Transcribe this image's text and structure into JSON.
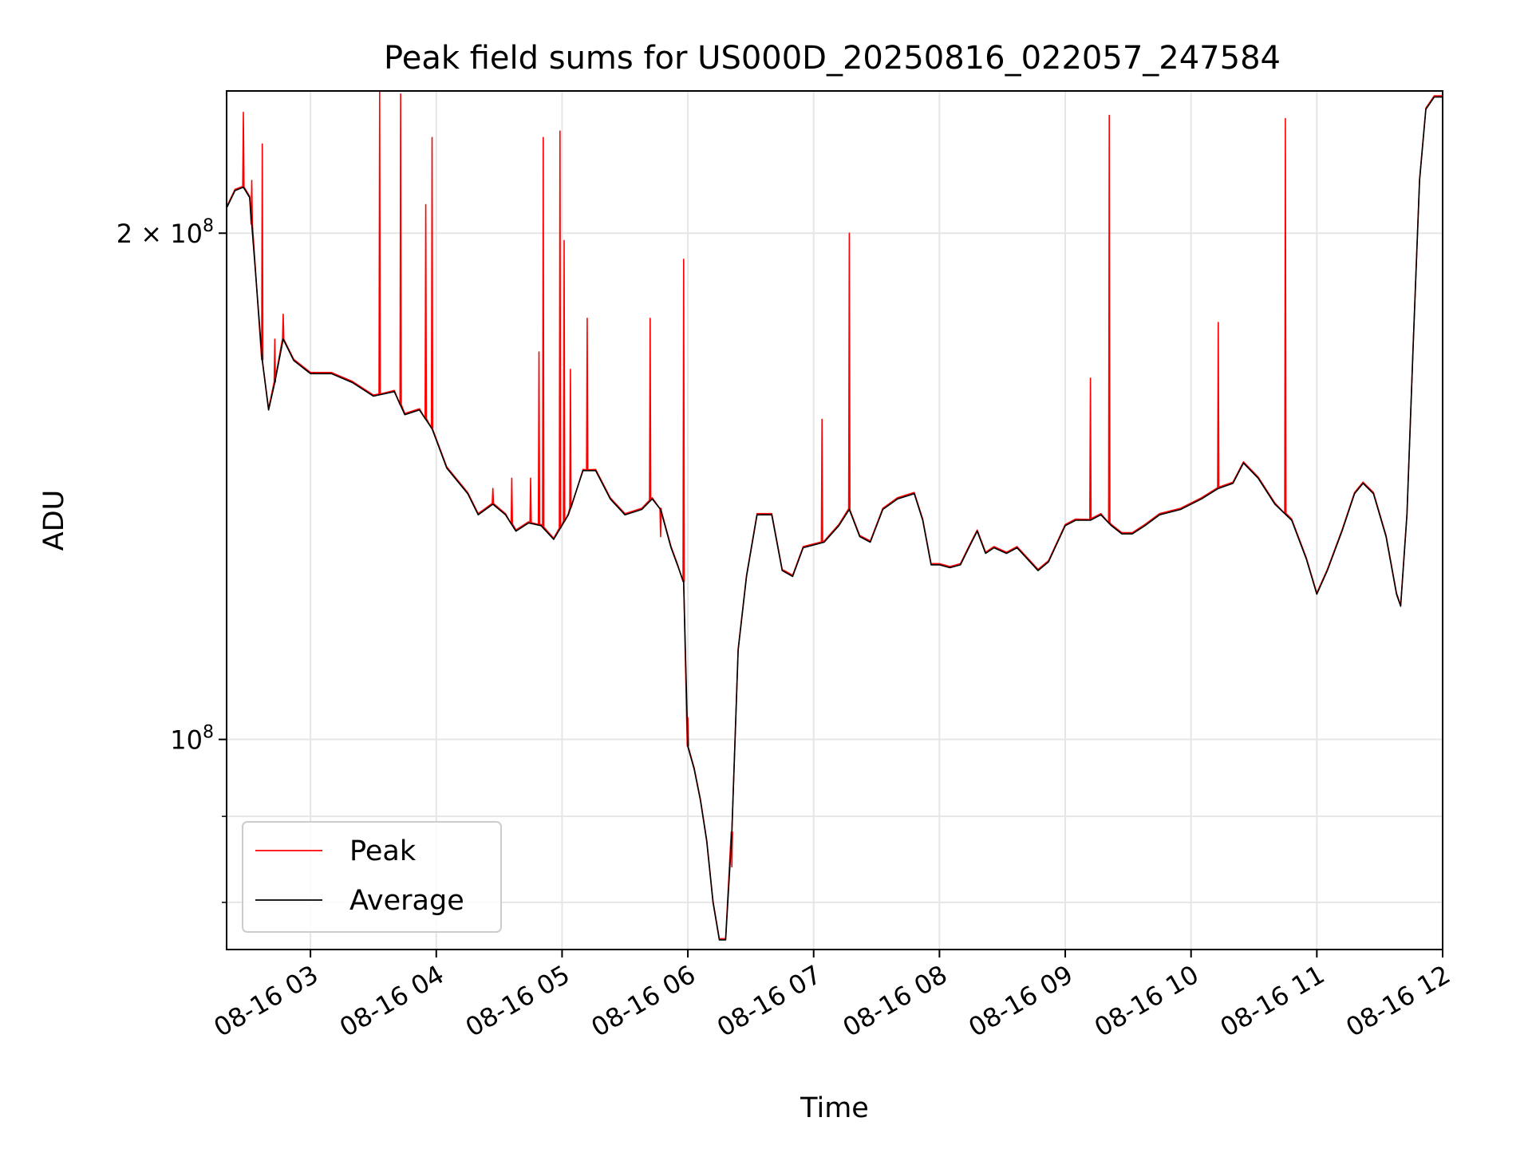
{
  "chart_data": {
    "type": "line",
    "title": "Peak field sums for US000D_20250816_022057_247584",
    "xlabel": "Time",
    "ylabel": "ADU",
    "yscale": "log",
    "grid": true,
    "legend_position": "lower-left",
    "xlim": [
      "2025-08-16 02:20",
      "2025-08-16 12:00"
    ],
    "ylim": [
      75000000,
      243000000
    ],
    "x_ticks": [
      {
        "value": "2025-08-16 03:00",
        "label": "08-16 03"
      },
      {
        "value": "2025-08-16 04:00",
        "label": "08-16 04"
      },
      {
        "value": "2025-08-16 05:00",
        "label": "08-16 05"
      },
      {
        "value": "2025-08-16 06:00",
        "label": "08-16 06"
      },
      {
        "value": "2025-08-16 07:00",
        "label": "08-16 07"
      },
      {
        "value": "2025-08-16 08:00",
        "label": "08-16 08"
      },
      {
        "value": "2025-08-16 09:00",
        "label": "08-16 09"
      },
      {
        "value": "2025-08-16 10:00",
        "label": "08-16 10"
      },
      {
        "value": "2025-08-16 11:00",
        "label": "08-16 11"
      },
      {
        "value": "2025-08-16 12:00",
        "label": "08-16 12"
      }
    ],
    "y_major_ticks": [
      {
        "value": 100000000,
        "base": "10",
        "exp": "8",
        "mult": ""
      },
      {
        "value": 200000000,
        "base": "10",
        "exp": "8",
        "mult": "2 × "
      }
    ],
    "y_minor_ticks": [
      80000000,
      90000000
    ],
    "series": [
      {
        "name": "Average",
        "color": "#000000",
        "points": [
          [
            "2025-08-16 02:20",
            207000000
          ],
          [
            "2025-08-16 02:24",
            212000000
          ],
          [
            "2025-08-16 02:28",
            213000000
          ],
          [
            "2025-08-16 02:31",
            210000000
          ],
          [
            "2025-08-16 02:34",
            188000000
          ],
          [
            "2025-08-16 02:37",
            168000000
          ],
          [
            "2025-08-16 02:40",
            157000000
          ],
          [
            "2025-08-16 02:43",
            163000000
          ],
          [
            "2025-08-16 02:47",
            173000000
          ],
          [
            "2025-08-16 02:52",
            168000000
          ],
          [
            "2025-08-16 03:00",
            165000000
          ],
          [
            "2025-08-16 03:10",
            165000000
          ],
          [
            "2025-08-16 03:20",
            163000000
          ],
          [
            "2025-08-16 03:30",
            160000000
          ],
          [
            "2025-08-16 03:40",
            161000000
          ],
          [
            "2025-08-16 03:45",
            156000000
          ],
          [
            "2025-08-16 03:52",
            157000000
          ],
          [
            "2025-08-16 03:58",
            153000000
          ],
          [
            "2025-08-16 04:05",
            145000000
          ],
          [
            "2025-08-16 04:15",
            140000000
          ],
          [
            "2025-08-16 04:20",
            136000000
          ],
          [
            "2025-08-16 04:27",
            138000000
          ],
          [
            "2025-08-16 04:33",
            136000000
          ],
          [
            "2025-08-16 04:38",
            133000000
          ],
          [
            "2025-08-16 04:44",
            134500000
          ],
          [
            "2025-08-16 04:50",
            134000000
          ],
          [
            "2025-08-16 04:56",
            131500000
          ],
          [
            "2025-08-16 05:03",
            136000000
          ],
          [
            "2025-08-16 05:10",
            144500000
          ],
          [
            "2025-08-16 05:16",
            144500000
          ],
          [
            "2025-08-16 05:23",
            139000000
          ],
          [
            "2025-08-16 05:30",
            136000000
          ],
          [
            "2025-08-16 05:38",
            137000000
          ],
          [
            "2025-08-16 05:43",
            139000000
          ],
          [
            "2025-08-16 05:47",
            137000000
          ],
          [
            "2025-08-16 05:52",
            130000000
          ],
          [
            "2025-08-16 05:55",
            127000000
          ],
          [
            "2025-08-16 05:58",
            124000000
          ],
          [
            "2025-08-16 06:00",
            99000000
          ],
          [
            "2025-08-16 06:03",
            96000000
          ],
          [
            "2025-08-16 06:06",
            92000000
          ],
          [
            "2025-08-16 06:09",
            87000000
          ],
          [
            "2025-08-16 06:12",
            80000000
          ],
          [
            "2025-08-16 06:15",
            76000000
          ],
          [
            "2025-08-16 06:18",
            76000000
          ],
          [
            "2025-08-16 06:21",
            88000000
          ],
          [
            "2025-08-16 06:24",
            113000000
          ],
          [
            "2025-08-16 06:28",
            125000000
          ],
          [
            "2025-08-16 06:33",
            136000000
          ],
          [
            "2025-08-16 06:40",
            136000000
          ],
          [
            "2025-08-16 06:45",
            126000000
          ],
          [
            "2025-08-16 06:50",
            125000000
          ],
          [
            "2025-08-16 06:55",
            130000000
          ],
          [
            "2025-08-16 07:05",
            131000000
          ],
          [
            "2025-08-16 07:12",
            134000000
          ],
          [
            "2025-08-16 07:17",
            137000000
          ],
          [
            "2025-08-16 07:22",
            132000000
          ],
          [
            "2025-08-16 07:27",
            131000000
          ],
          [
            "2025-08-16 07:33",
            137000000
          ],
          [
            "2025-08-16 07:40",
            139000000
          ],
          [
            "2025-08-16 07:48",
            140000000
          ],
          [
            "2025-08-16 07:52",
            135000000
          ],
          [
            "2025-08-16 07:56",
            127000000
          ],
          [
            "2025-08-16 08:00",
            127000000
          ],
          [
            "2025-08-16 08:05",
            126500000
          ],
          [
            "2025-08-16 08:10",
            127000000
          ],
          [
            "2025-08-16 08:14",
            130000000
          ],
          [
            "2025-08-16 08:18",
            133000000
          ],
          [
            "2025-08-16 08:22",
            129000000
          ],
          [
            "2025-08-16 08:26",
            130000000
          ],
          [
            "2025-08-16 08:32",
            129000000
          ],
          [
            "2025-08-16 08:37",
            130000000
          ],
          [
            "2025-08-16 08:42",
            128000000
          ],
          [
            "2025-08-16 08:47",
            126000000
          ],
          [
            "2025-08-16 08:52",
            127500000
          ],
          [
            "2025-08-16 09:00",
            134000000
          ],
          [
            "2025-08-16 09:05",
            135000000
          ],
          [
            "2025-08-16 09:12",
            135000000
          ],
          [
            "2025-08-16 09:17",
            136000000
          ],
          [
            "2025-08-16 09:22",
            134000000
          ],
          [
            "2025-08-16 09:27",
            132500000
          ],
          [
            "2025-08-16 09:32",
            132500000
          ],
          [
            "2025-08-16 09:38",
            134000000
          ],
          [
            "2025-08-16 09:45",
            136000000
          ],
          [
            "2025-08-16 09:55",
            137000000
          ],
          [
            "2025-08-16 10:05",
            139000000
          ],
          [
            "2025-08-16 10:13",
            141000000
          ],
          [
            "2025-08-16 10:20",
            142000000
          ],
          [
            "2025-08-16 10:25",
            146000000
          ],
          [
            "2025-08-16 10:32",
            143000000
          ],
          [
            "2025-08-16 10:40",
            138000000
          ],
          [
            "2025-08-16 10:48",
            135000000
          ],
          [
            "2025-08-16 10:55",
            128000000
          ],
          [
            "2025-08-16 11:00",
            122000000
          ],
          [
            "2025-08-16 11:05",
            126000000
          ],
          [
            "2025-08-16 11:12",
            133000000
          ],
          [
            "2025-08-16 11:18",
            140000000
          ],
          [
            "2025-08-16 11:22",
            142000000
          ],
          [
            "2025-08-16 11:27",
            140000000
          ],
          [
            "2025-08-16 11:33",
            132000000
          ],
          [
            "2025-08-16 11:38",
            122000000
          ],
          [
            "2025-08-16 11:40",
            120000000
          ],
          [
            "2025-08-16 11:43",
            136000000
          ],
          [
            "2025-08-16 11:46",
            172000000
          ],
          [
            "2025-08-16 11:49",
            215000000
          ],
          [
            "2025-08-16 11:52",
            237000000
          ],
          [
            "2025-08-16 11:56",
            241000000
          ],
          [
            "2025-08-16 12:00",
            241000000
          ]
        ]
      },
      {
        "name": "Peak",
        "color": "#ff0000",
        "spikes": [
          [
            "2025-08-16 02:28",
            236000000
          ],
          [
            "2025-08-16 02:32",
            215000000
          ],
          [
            "2025-08-16 02:37",
            226000000
          ],
          [
            "2025-08-16 02:43",
            173000000
          ],
          [
            "2025-08-16 02:47",
            179000000
          ],
          [
            "2025-08-16 03:33",
            243000000
          ],
          [
            "2025-08-16 03:43",
            242000000
          ],
          [
            "2025-08-16 03:55",
            208000000
          ],
          [
            "2025-08-16 03:58",
            228000000
          ],
          [
            "2025-08-16 04:27",
            141000000
          ],
          [
            "2025-08-16 04:36",
            143000000
          ],
          [
            "2025-08-16 04:45",
            143000000
          ],
          [
            "2025-08-16 04:49",
            170000000
          ],
          [
            "2025-08-16 04:51",
            228000000
          ],
          [
            "2025-08-16 04:59",
            230000000
          ],
          [
            "2025-08-16 05:01",
            198000000
          ],
          [
            "2025-08-16 05:04",
            166000000
          ],
          [
            "2025-08-16 05:12",
            178000000
          ],
          [
            "2025-08-16 05:42",
            178000000
          ],
          [
            "2025-08-16 05:47",
            132000000
          ],
          [
            "2025-08-16 05:58",
            193000000
          ],
          [
            "2025-08-16 06:00",
            103000000
          ],
          [
            "2025-08-16 06:21",
            84000000
          ],
          [
            "2025-08-16 07:04",
            155000000
          ],
          [
            "2025-08-16 07:17",
            200000000
          ],
          [
            "2025-08-16 09:12",
            164000000
          ],
          [
            "2025-08-16 09:21",
            235000000
          ],
          [
            "2025-08-16 10:13",
            177000000
          ],
          [
            "2025-08-16 10:45",
            234000000
          ]
        ]
      }
    ]
  }
}
